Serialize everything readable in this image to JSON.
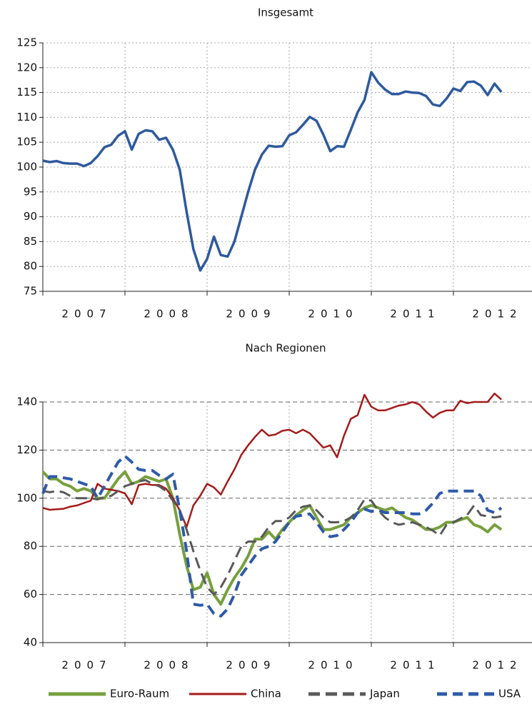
{
  "chart_data": [
    {
      "type": "line",
      "title": "Insgesamt",
      "categories": [
        null,
        null,
        null,
        null,
        null,
        null,
        "2007",
        null,
        null,
        null,
        null,
        null,
        null,
        null,
        null,
        null,
        null,
        null,
        "2008",
        null,
        null,
        null,
        null,
        null,
        null,
        null,
        null,
        null,
        null,
        null,
        "2009",
        null,
        null,
        null,
        null,
        null,
        null,
        null,
        null,
        null,
        null,
        null,
        "2010",
        null,
        null,
        null,
        null,
        null,
        null,
        null,
        null,
        null,
        null,
        null,
        "2011",
        null,
        null,
        null,
        null,
        null,
        null,
        null,
        null,
        null,
        null,
        null,
        "2012",
        null
      ],
      "values": [
        101.3,
        101.0,
        101.2,
        100.8,
        100.7,
        100.7,
        100.2,
        100.8,
        102.2,
        104.0,
        104.5,
        106.3,
        107.2,
        103.5,
        106.7,
        107.4,
        107.2,
        105.5,
        105.9,
        103.5,
        99.5,
        91,
        83.5,
        79.2,
        81.5,
        86,
        82.3,
        82,
        85,
        90,
        95,
        99.5,
        102.5,
        104.3,
        104.1,
        104.2,
        106.4,
        107,
        108.5,
        110.1,
        109.3,
        106.5,
        103.2,
        104.2,
        104.1,
        107.5,
        111,
        113.5,
        119.1,
        117,
        115.6,
        114.7,
        114.7,
        115.2,
        115,
        114.9,
        114.3,
        112.6,
        112.3,
        113.8,
        115.8,
        115.3,
        117.1,
        117.2,
        116.4,
        114.5,
        116.8,
        115.1
      ],
      "color": "#2e5a9e",
      "ylim": [
        75,
        125
      ],
      "yticks": [
        75,
        80,
        85,
        90,
        95,
        100,
        105,
        110,
        115,
        120,
        125
      ],
      "grid": true,
      "grid_style": "dotted"
    },
    {
      "type": "line",
      "title": "Nach Regionen",
      "categories": [
        null,
        null,
        null,
        null,
        null,
        null,
        "2007",
        null,
        null,
        null,
        null,
        null,
        null,
        null,
        null,
        null,
        null,
        null,
        "2008",
        null,
        null,
        null,
        null,
        null,
        null,
        null,
        null,
        null,
        null,
        null,
        "2009",
        null,
        null,
        null,
        null,
        null,
        null,
        null,
        null,
        null,
        null,
        null,
        "2010",
        null,
        null,
        null,
        null,
        null,
        null,
        null,
        null,
        null,
        null,
        null,
        "2011",
        null,
        null,
        null,
        null,
        null,
        null,
        null,
        null,
        null,
        null,
        null,
        "2012",
        null
      ],
      "series": [
        {
          "name": "Euro-Raum",
          "color": "#77a03c",
          "dashed": false,
          "values": [
            111,
            108,
            108,
            106,
            105,
            103,
            104,
            103,
            100,
            100,
            104,
            108,
            111,
            106,
            107,
            109,
            108,
            107,
            108,
            100,
            85,
            72,
            62,
            63,
            69,
            60,
            56,
            62,
            67,
            71,
            76,
            83,
            83,
            86,
            83,
            87,
            90,
            93,
            95,
            97,
            92,
            87,
            87,
            88,
            89,
            92,
            94,
            96,
            97,
            96,
            95,
            96,
            94,
            92,
            91,
            89,
            87,
            87,
            88,
            90,
            90,
            91,
            92,
            89,
            88,
            86,
            89,
            87
          ]
        },
        {
          "name": "China",
          "color": "#a31b1b",
          "dashed": false,
          "values": [
            96,
            95.2,
            95.4,
            95.6,
            96.5,
            97,
            98,
            99,
            106,
            104,
            103.5,
            103,
            102,
            97.5,
            105.5,
            106,
            105.5,
            105.5,
            104,
            100,
            95,
            88,
            97,
            101,
            106,
            104.5,
            101.5,
            107,
            112,
            118,
            122,
            125.5,
            128.5,
            126,
            126.5,
            128,
            128.5,
            127,
            128.5,
            127,
            124,
            121,
            122,
            117,
            126,
            133,
            134.5,
            143,
            138,
            136.5,
            136.5,
            137.5,
            138.5,
            139,
            140,
            139,
            136,
            133.5,
            135.5,
            136.5,
            136.5,
            140.5,
            139.5,
            140,
            140,
            140,
            143.5,
            141
          ]
        },
        {
          "name": "Japan",
          "color": "#595959",
          "dashed": true,
          "values": [
            103,
            102.5,
            103,
            102.5,
            101,
            100,
            100,
            100,
            99.5,
            100.5,
            101,
            103,
            105,
            106,
            107,
            107.5,
            106,
            105,
            103,
            99,
            95,
            87,
            78,
            70,
            63,
            60,
            63,
            68,
            74,
            80,
            82,
            82,
            84,
            88,
            90.5,
            90.5,
            92,
            95,
            96.5,
            97,
            95,
            92,
            90,
            90,
            90.5,
            92,
            95,
            99.5,
            99,
            95,
            92,
            90,
            89,
            89.5,
            90,
            89,
            88,
            86.5,
            84.5,
            89,
            90,
            91.5,
            93,
            97,
            93,
            92.5,
            92,
            92.5
          ]
        },
        {
          "name": "USA",
          "color": "#2e5aa8",
          "dashed": true,
          "values": [
            102,
            109,
            109,
            108.5,
            108,
            107,
            106,
            105,
            100,
            105,
            110,
            115,
            117.5,
            115,
            112,
            111.5,
            111.5,
            109.5,
            108,
            110,
            95,
            78,
            56,
            55.5,
            56,
            52,
            51,
            54,
            60,
            68,
            72,
            76,
            79,
            80,
            82,
            86,
            90,
            92.5,
            93,
            93.5,
            90,
            86,
            84,
            84.5,
            87,
            90,
            94,
            95.5,
            94.5,
            95,
            94,
            94,
            94,
            94,
            93.5,
            93.5,
            95,
            98,
            102,
            103,
            103,
            103,
            103,
            103,
            101,
            95,
            94,
            96
          ]
        }
      ],
      "ylim": [
        40,
        140
      ],
      "yticks": [
        40,
        60,
        80,
        100,
        120,
        140
      ],
      "grid": true,
      "grid_style": "dashed",
      "legend": "bottom"
    }
  ]
}
